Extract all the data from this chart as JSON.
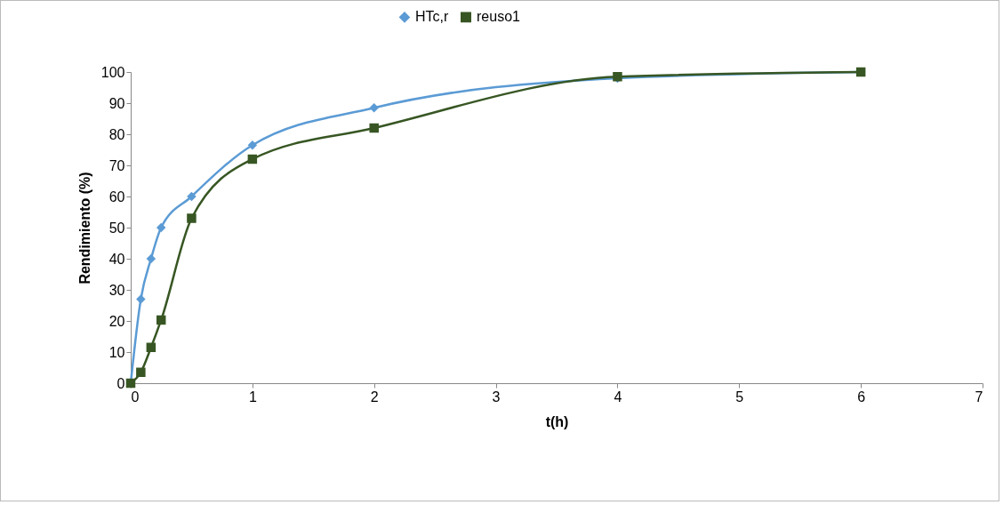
{
  "chart_data": {
    "type": "line",
    "xlabel": "t(h)",
    "ylabel": "Rendimiento (%)",
    "xlim": [
      0,
      7
    ],
    "xticks": [
      0,
      1,
      2,
      3,
      4,
      5,
      6,
      7
    ],
    "ylim": [
      0,
      100
    ],
    "yticks": [
      0,
      10,
      20,
      30,
      40,
      50,
      60,
      70,
      80,
      90,
      100
    ],
    "grid": false,
    "legend": "top",
    "series": [
      {
        "name": "HTc,r",
        "color": "#5b9bd5",
        "marker": "diamond",
        "x": [
          0,
          0.083,
          0.167,
          0.25,
          0.5,
          1,
          2,
          4,
          6
        ],
        "values": [
          0,
          27,
          40,
          50,
          60,
          76.5,
          88.5,
          98,
          100
        ]
      },
      {
        "name": "reuso1",
        "color": "#375623",
        "marker": "square",
        "x": [
          0,
          0.083,
          0.167,
          0.25,
          0.5,
          1,
          2,
          4,
          6
        ],
        "values": [
          0,
          3.5,
          11.5,
          20.3,
          53,
          72,
          82,
          98.5,
          100
        ]
      }
    ]
  }
}
